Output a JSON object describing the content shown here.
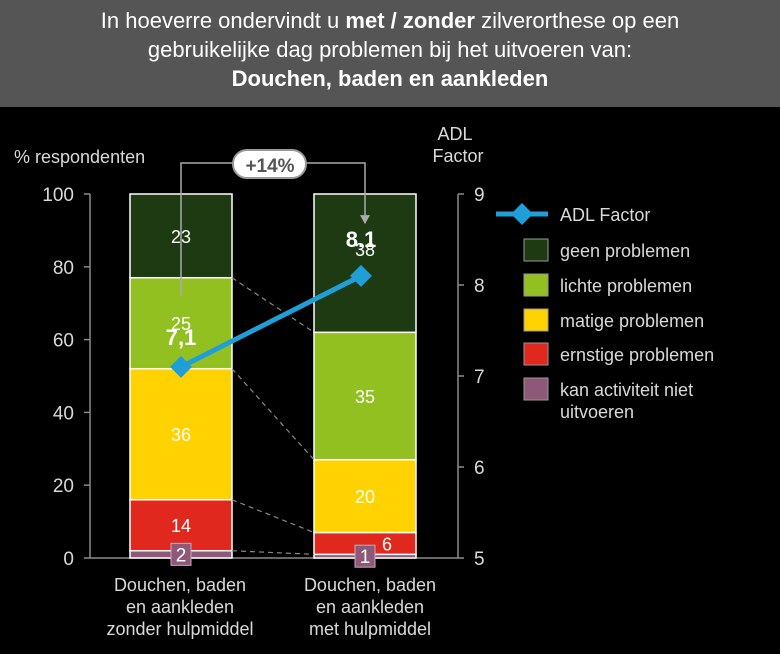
{
  "chart_data": {
    "type": "bar",
    "title_parts": {
      "a": "In hoeverre ondervindt u ",
      "b": "met / zonder",
      "c": " zilverorthese op een",
      "line2": "gebruikelijke dag problemen bij het uitvoeren van:",
      "line3": "Douchen, baden en aankleden"
    },
    "ylabel": "% respondenten",
    "y2label_1": "ADL",
    "y2label_2": "Factor",
    "ylim": [
      0,
      100
    ],
    "y2lim": [
      5,
      9
    ],
    "yticks": [
      "0",
      "20",
      "40",
      "60",
      "80",
      "100"
    ],
    "y2ticks": [
      "5",
      "6",
      "7",
      "8",
      "9"
    ],
    "categories": [
      [
        "Douchen, baden",
        "en aankleden",
        "zonder hulpmiddel"
      ],
      [
        "Douchen, baden",
        "en aankleden",
        "met hulpmiddel"
      ]
    ],
    "series": [
      {
        "name": "kan activiteit niet uitvoeren",
        "name_line1": "kan activiteit niet",
        "name_line2": "uitvoeren",
        "color": "#8E5878",
        "values": [
          2,
          1
        ],
        "labels": [
          "2",
          "1"
        ]
      },
      {
        "name": "ernstige problemen",
        "color": "#E0281E",
        "values": [
          14,
          6
        ],
        "labels": [
          "14",
          "6"
        ]
      },
      {
        "name": "matige problemen",
        "color": "#FFD200",
        "values": [
          36,
          20
        ],
        "labels": [
          "36",
          "20"
        ]
      },
      {
        "name": "lichte problemen",
        "color": "#92C020",
        "values": [
          25,
          35
        ],
        "labels": [
          "25",
          "35"
        ]
      },
      {
        "name": "geen problemen",
        "color": "#1E3A12",
        "values": [
          23,
          38
        ],
        "labels": [
          "23",
          "38"
        ]
      }
    ],
    "adl_series": {
      "name": "ADL Factor",
      "color": "#1F9ED8",
      "values": [
        7.1,
        8.1
      ],
      "labels": [
        "7,1",
        "8.1"
      ]
    },
    "annotation": "+14%"
  }
}
